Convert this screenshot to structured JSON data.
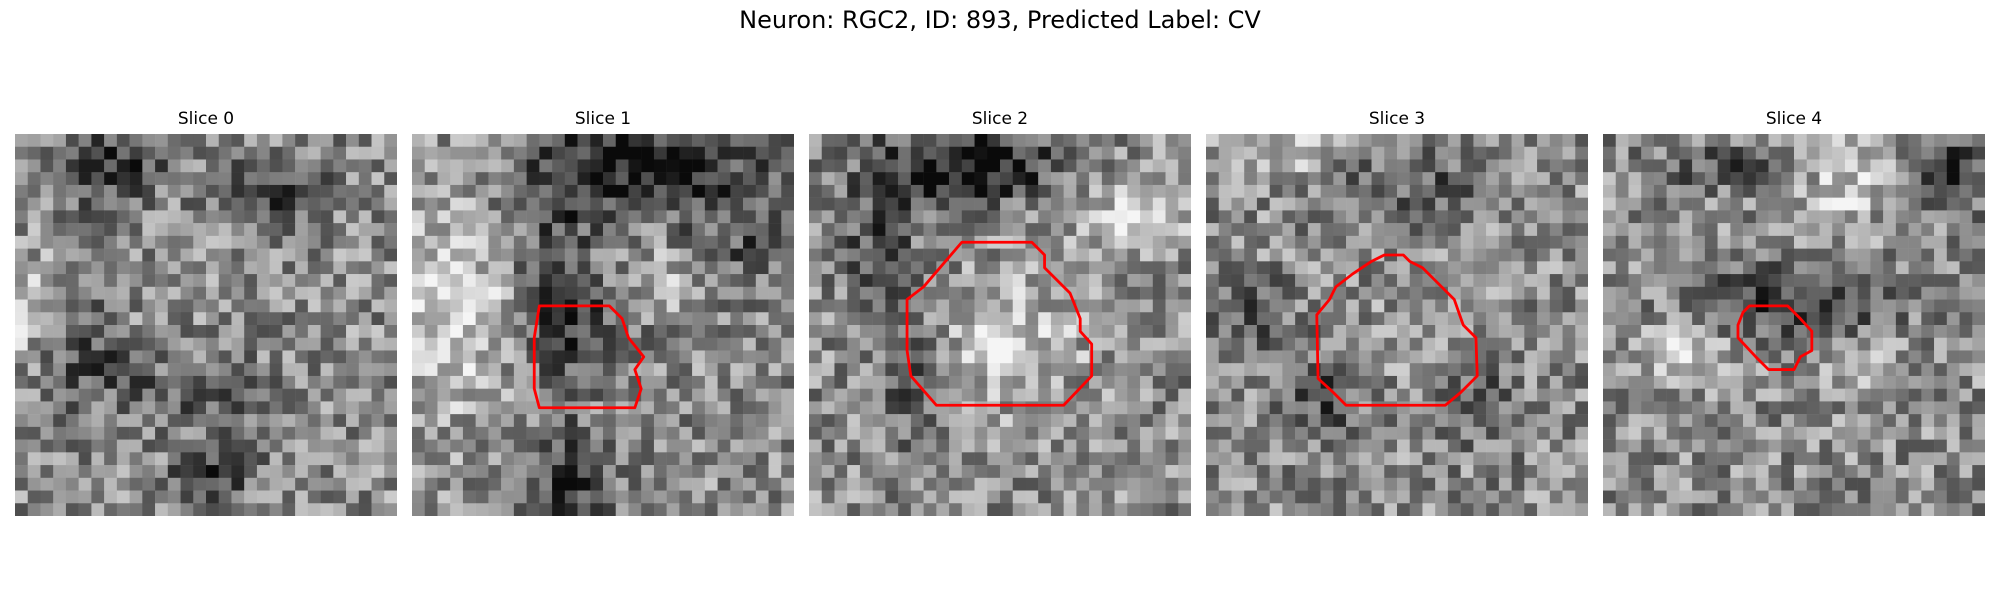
{
  "figure": {
    "title": "Neuron: RGC2, ID: 893, Predicted Label: CV",
    "contour_color": "#ff0000",
    "colormap": "grayscale"
  },
  "panels": [
    {
      "title": "Slice 0",
      "has_contour": false
    },
    {
      "title": "Slice 1",
      "has_contour": true
    },
    {
      "title": "Slice 2",
      "has_contour": true
    },
    {
      "title": "Slice 3",
      "has_contour": true
    },
    {
      "title": "Slice 4",
      "has_contour": true
    }
  ]
}
